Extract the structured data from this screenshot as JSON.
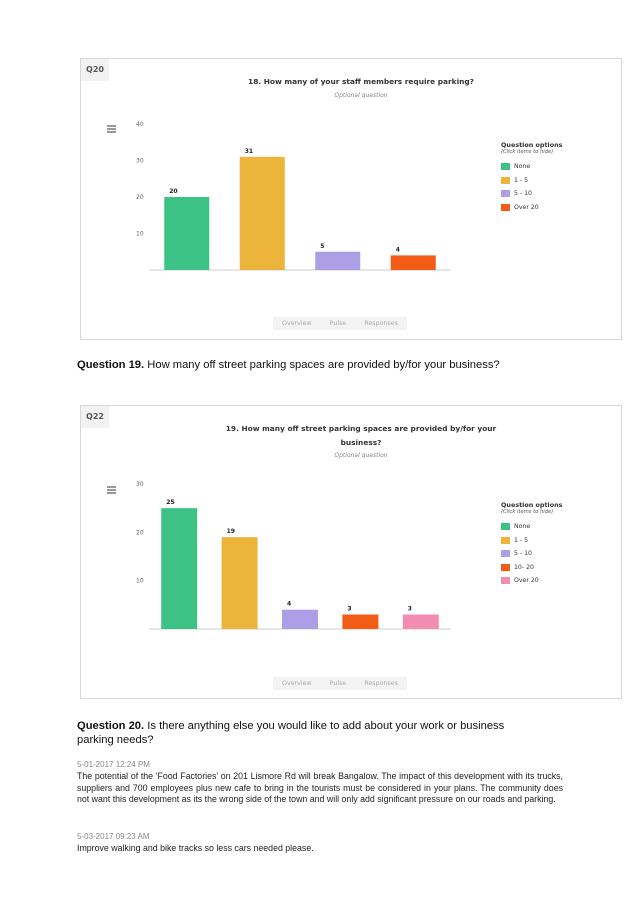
{
  "chart_data": [
    {
      "type": "bar",
      "tag": "Q20",
      "title": "18. How many of your staff members require parking?",
      "subtitle": "Optional question",
      "categories": [
        "None",
        "1 - 5",
        "5 - 10",
        "Over 20"
      ],
      "values": [
        20,
        31,
        5,
        4
      ],
      "colors": [
        "#3cc285",
        "#ecb43a",
        "#ac9fe6",
        "#f25c17"
      ],
      "yticks": [
        10,
        20,
        30,
        40
      ],
      "ylim": [
        0,
        40
      ],
      "legend_title": "Question options",
      "legend_subtitle": "(Click items to hide)",
      "legend_position": "right",
      "tabs": [
        "Overview",
        "Pulse",
        "Responses"
      ]
    },
    {
      "type": "bar",
      "tag": "Q22",
      "title": "19. How many off street parking spaces are provided by/for your business?",
      "title_lines": [
        "19. How many off street parking spaces are provided by/for your",
        "business?"
      ],
      "subtitle": "Optional question",
      "categories": [
        "None",
        "1 - 5",
        "5 - 10",
        "10- 20",
        "Over 20"
      ],
      "values": [
        25,
        19,
        4,
        3,
        3
      ],
      "colors": [
        "#3cc285",
        "#ecb43a",
        "#ac9fe6",
        "#f25c17",
        "#f28cb0"
      ],
      "yticks": [
        10,
        20,
        30
      ],
      "ylim": [
        0,
        30
      ],
      "legend_title": "Question options",
      "legend_subtitle": "(Click items to hide)",
      "legend_position": "right",
      "tabs": [
        "Overview",
        "Pulse",
        "Responses"
      ]
    }
  ],
  "q19": {
    "label": "Question 19.",
    "text": " How many off street parking spaces are provided by/for your business?"
  },
  "q20": {
    "label": "Question 20.",
    "text": " Is there anything else you would like to add about your work or business parking needs?"
  },
  "responses": [
    {
      "timestamp": "5-01-2017 12:24 PM",
      "text": "The potential of the 'Food Factories' on 201 Lismore Rd will break Bangalow. The impact of this development with its trucks, suppliers and 700 employees plus new cafe to bring in the tourists must be considered in your plans. The community does not want this development as its the wrong side of the town and will only add significant pressure on our roads and parking."
    },
    {
      "timestamp": "5-03-2017 09:23 AM",
      "text": "Improve walking and bike tracks so less cars needed please."
    }
  ]
}
